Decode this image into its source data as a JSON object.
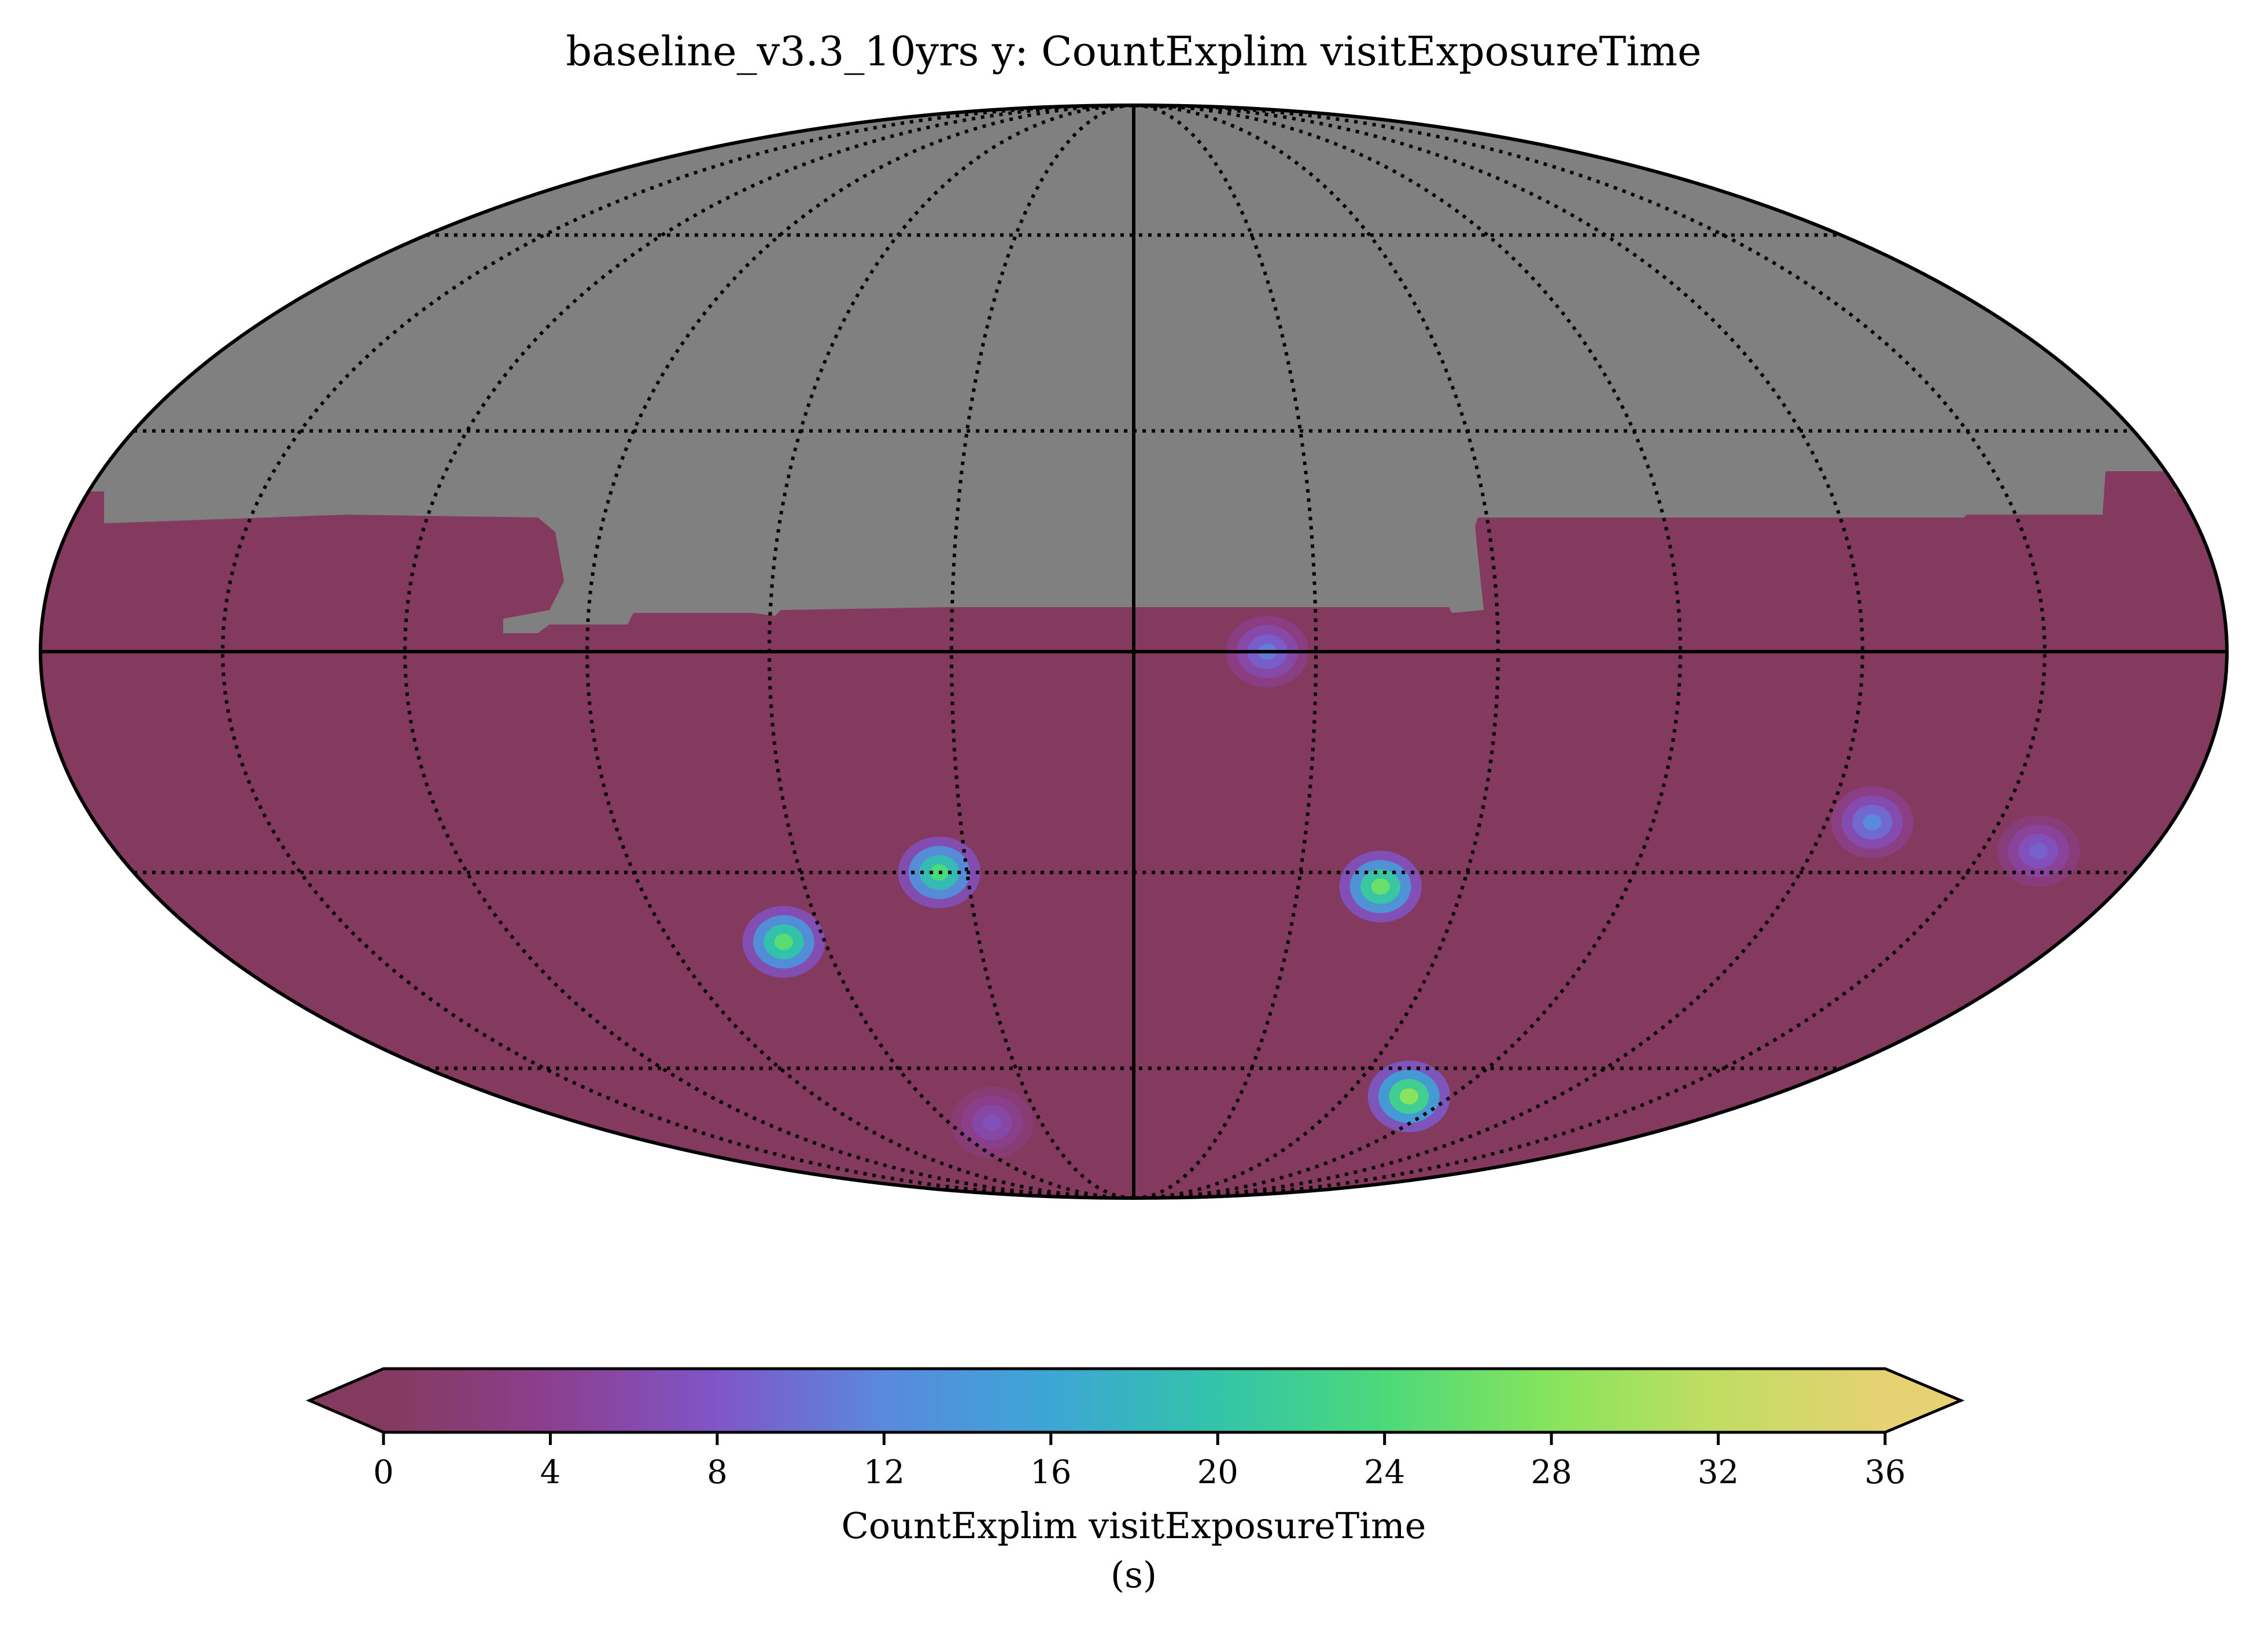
{
  "chart_data": {
    "type": "heatmap",
    "projection": "mollweide",
    "title": "baseline_v3.3_10yrs y: CountExplim visitExposureTime",
    "colorbar": {
      "label": "CountExplim visitExposureTime",
      "unit": "(s)",
      "ticks": [
        "0",
        "4",
        "8",
        "12",
        "16",
        "20",
        "24",
        "28",
        "32",
        "36"
      ],
      "range": [
        0,
        36
      ],
      "extend": "both",
      "colormap": [
        "#843a5e",
        "#8c3f8f",
        "#8055c8",
        "#5a89dd",
        "#3ca6d5",
        "#33c4a9",
        "#4cd97a",
        "#87e45c",
        "#c2dd62",
        "#e6d173"
      ]
    },
    "background": {
      "masked_region": "northern sky (no data)",
      "masked_color": "#808080",
      "base_value": 0
    },
    "grid": {
      "graticule": "dotted",
      "lon_step_deg": 30,
      "lat_step_deg": 30,
      "solid_axes": "equator and central meridian"
    },
    "hotspots": [
      {
        "lon": -35,
        "lat": -30,
        "value": 24
      },
      {
        "lon": -68,
        "lat": -40,
        "value": 25
      },
      {
        "lon": -46,
        "lat": -70,
        "value": 7
      },
      {
        "lon": 22,
        "lat": 0,
        "value": 11
      },
      {
        "lon": 45,
        "lat": -32,
        "value": 26
      },
      {
        "lon": 78,
        "lat": -65,
        "value": 28
      },
      {
        "lon": 128,
        "lat": -23,
        "value": 12
      },
      {
        "lon": 160,
        "lat": -27,
        "value": 9
      }
    ]
  }
}
